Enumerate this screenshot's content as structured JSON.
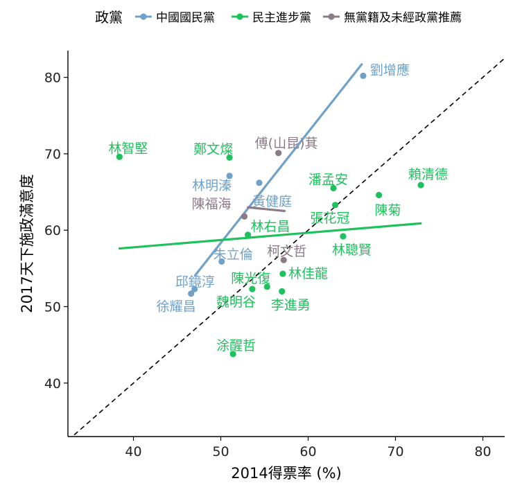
{
  "chart_data": {
    "type": "scatter",
    "title": "",
    "xlabel": "2014得票率 (%)",
    "ylabel": "2017天下施政滿意度",
    "xlim": [
      32.5,
      82.5
    ],
    "ylim": [
      33,
      83.5
    ],
    "xticks": [
      40,
      50,
      60,
      70,
      80
    ],
    "yticks": [
      40,
      50,
      60,
      70,
      80
    ],
    "grid": false,
    "legend": {
      "title": "政黨",
      "placement": "top",
      "entries": [
        "中國國民黨",
        "民主進步黨",
        "無黨籍及未經政黨推薦"
      ]
    },
    "reference_line": {
      "type": "diagonal",
      "slope": 1,
      "intercept": 0,
      "style": "dashed",
      "color": "#000000"
    },
    "series": [
      {
        "name": "中國國民黨",
        "color": "#6fa1c9",
        "trend": [
          [
            47.0,
            54.0
          ],
          [
            66.2,
            81.8
          ]
        ],
        "points": [
          {
            "label": "劉增應",
            "x": 66.3,
            "y": 80.2
          },
          {
            "label": "林明溱",
            "x": 51.0,
            "y": 67.1
          },
          {
            "label": "黃健庭",
            "x": 54.4,
            "y": 66.2
          },
          {
            "label": "朱立倫",
            "x": 50.1,
            "y": 55.9
          },
          {
            "label": "邱鏡淳",
            "x": 47.0,
            "y": 52.3
          },
          {
            "label": "徐耀昌",
            "x": 46.6,
            "y": 51.7
          }
        ]
      },
      {
        "name": "民主進步黨",
        "color": "#1dc25d",
        "trend": [
          [
            38.3,
            57.6
          ],
          [
            73.0,
            60.9
          ]
        ],
        "points": [
          {
            "label": "林智堅",
            "x": 38.4,
            "y": 69.6
          },
          {
            "label": "鄭文燦",
            "x": 51.0,
            "y": 69.5
          },
          {
            "label": "潘孟安",
            "x": 62.9,
            "y": 65.5
          },
          {
            "label": "賴清德",
            "x": 72.9,
            "y": 65.9
          },
          {
            "label": "陳菊",
            "x": 68.1,
            "y": 64.6
          },
          {
            "label": "張花冠",
            "x": 63.1,
            "y": 63.3
          },
          {
            "label": "林右昌",
            "x": 53.1,
            "y": 59.4
          },
          {
            "label": "林聰賢",
            "x": 64.0,
            "y": 59.2
          },
          {
            "label": "林佳龍",
            "x": 57.1,
            "y": 54.3
          },
          {
            "label": "陳光復",
            "x": 55.3,
            "y": 52.6
          },
          {
            "label": "魏明谷",
            "x": 53.6,
            "y": 52.3
          },
          {
            "label": "李進勇",
            "x": 57.0,
            "y": 52.0
          },
          {
            "label": "涂醒哲",
            "x": 51.4,
            "y": 43.8
          }
        ]
      },
      {
        "name": "無黨籍及未經政黨推薦",
        "color": "#8a7b87",
        "trend": [
          [
            53.0,
            63.0
          ],
          [
            57.4,
            62.5
          ]
        ],
        "points": [
          {
            "label": "傅𥕢萁",
            "x": 56.6,
            "y": 70.1
          },
          {
            "label": "陳福海",
            "x": 52.7,
            "y": 61.8
          },
          {
            "label": "柯文哲",
            "x": 57.2,
            "y": 56.1
          }
        ]
      }
    ],
    "label_display": {
      "傅𥕢萁": "傅(山昆)萁"
    }
  }
}
